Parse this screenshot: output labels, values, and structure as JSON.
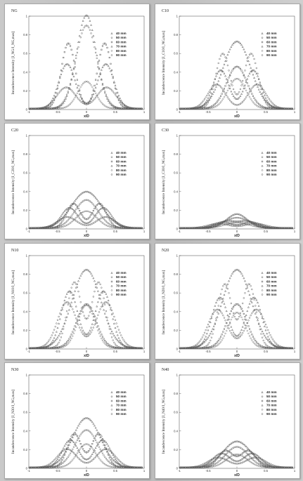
{
  "chart_data": [
    {
      "type": "line",
      "title": "NG",
      "xlabel": "x/D",
      "ylabel": "Incandescence Intensity [I_NG/I_NG,max]",
      "xlim": [
        -1,
        1
      ],
      "ylim": [
        0,
        1
      ],
      "legend_position": "top-right",
      "series": [
        {
          "name": "40 mm",
          "center": 0.0,
          "width": 0.17,
          "peak": 1.0,
          "bimodal": 0
        },
        {
          "name": "50 mm",
          "center": 0.0,
          "width": 0.18,
          "peak": 0.89,
          "bimodal": 0
        },
        {
          "name": "60 mm",
          "center": 0.0,
          "width": 0.22,
          "peak": 0.7,
          "bimodal": 0.45
        },
        {
          "name": "70 mm",
          "center": 0.0,
          "width": 0.26,
          "peak": 0.48,
          "bimodal": 0.48
        },
        {
          "name": "80 mm",
          "center": 0.0,
          "width": 0.15,
          "peak": 0.29,
          "bimodal": 0
        },
        {
          "name": "90 mm",
          "center": 0.0,
          "width": 0.3,
          "peak": 0.23,
          "bimodal": 0.5
        }
      ]
    },
    {
      "type": "line",
      "title": "C10",
      "xlabel": "x/D",
      "ylabel": "Incandescence Intensity [I_C10/I_NG,max]",
      "xlim": [
        -1,
        1
      ],
      "ylim": [
        0,
        1
      ],
      "legend_position": "top-right",
      "series": [
        {
          "name": "40 mm",
          "center": 0.0,
          "width": 0.24,
          "peak": 0.72,
          "bimodal": 0
        },
        {
          "name": "50 mm",
          "center": 0.0,
          "width": 0.22,
          "peak": 0.6,
          "bimodal": 0.35
        },
        {
          "name": "60 mm",
          "center": 0.0,
          "width": 0.18,
          "peak": 0.45,
          "bimodal": 0
        },
        {
          "name": "70 mm",
          "center": 0.0,
          "width": 0.25,
          "peak": 0.42,
          "bimodal": 0.4
        },
        {
          "name": "80 mm",
          "center": 0.0,
          "width": 0.16,
          "peak": 0.32,
          "bimodal": 0
        },
        {
          "name": "90 mm",
          "center": 0.0,
          "width": 0.28,
          "peak": 0.26,
          "bimodal": 0.5
        }
      ]
    },
    {
      "type": "line",
      "title": "C20",
      "xlabel": "x/D",
      "ylabel": "Incandescence Intensity [I_C20/I_NG,max]",
      "xlim": [
        -1,
        1
      ],
      "ylim": [
        0,
        1
      ],
      "legend_position": "top-right",
      "series": [
        {
          "name": "40 mm",
          "center": 0.0,
          "width": 0.26,
          "peak": 0.39,
          "bimodal": 0
        },
        {
          "name": "50 mm",
          "center": 0.0,
          "width": 0.2,
          "peak": 0.3,
          "bimodal": 0
        },
        {
          "name": "60 mm",
          "center": 0.0,
          "width": 0.22,
          "peak": 0.27,
          "bimodal": 0.32
        },
        {
          "name": "70 mm",
          "center": 0.0,
          "width": 0.26,
          "peak": 0.22,
          "bimodal": 0.42
        },
        {
          "name": "80 mm",
          "center": 0.0,
          "width": 0.18,
          "peak": 0.18,
          "bimodal": 0
        },
        {
          "name": "90 mm",
          "center": 0.0,
          "width": 0.3,
          "peak": 0.12,
          "bimodal": 0.48
        }
      ]
    },
    {
      "type": "line",
      "title": "C30",
      "xlabel": "x/D",
      "ylabel": "Incandescence Intensity [I_C30/I_NG,max]",
      "xlim": [
        -1,
        1
      ],
      "ylim": [
        0,
        1
      ],
      "legend_position": "top-right",
      "series": [
        {
          "name": "40 mm",
          "center": 0.0,
          "width": 0.18,
          "peak": 0.15,
          "bimodal": 0
        },
        {
          "name": "50 mm",
          "center": 0.0,
          "width": 0.22,
          "peak": 0.11,
          "bimodal": 0
        },
        {
          "name": "60 mm",
          "center": 0.0,
          "width": 0.26,
          "peak": 0.09,
          "bimodal": 0.25
        },
        {
          "name": "70 mm",
          "center": 0.0,
          "width": 0.28,
          "peak": 0.07,
          "bimodal": 0.35
        },
        {
          "name": "80 mm",
          "center": 0.0,
          "width": 0.2,
          "peak": 0.06,
          "bimodal": 0
        },
        {
          "name": "90 mm",
          "center": 0.0,
          "width": 0.32,
          "peak": 0.05,
          "bimodal": 0.45
        }
      ]
    },
    {
      "type": "line",
      "title": "N10",
      "xlabel": "x/D",
      "ylabel": "Incandescence Intensity [I_N10/I_NG,max]",
      "xlim": [
        -1,
        1
      ],
      "ylim": [
        0,
        1
      ],
      "legend_position": "top-right",
      "series": [
        {
          "name": "40 mm",
          "center": 0.0,
          "width": 0.25,
          "peak": 0.84,
          "bimodal": 0
        },
        {
          "name": "50 mm",
          "center": 0.0,
          "width": 0.22,
          "peak": 0.74,
          "bimodal": 0.3
        },
        {
          "name": "60 mm",
          "center": 0.0,
          "width": 0.17,
          "peak": 0.47,
          "bimodal": 0
        },
        {
          "name": "70 mm",
          "center": 0.0,
          "width": 0.26,
          "peak": 0.62,
          "bimodal": 0.42
        },
        {
          "name": "80 mm",
          "center": 0.0,
          "width": 0.15,
          "peak": 0.46,
          "bimodal": 0
        },
        {
          "name": "90 mm",
          "center": 0.0,
          "width": 0.3,
          "peak": 0.5,
          "bimodal": 0.48
        }
      ]
    },
    {
      "type": "line",
      "title": "N20",
      "xlabel": "x/D",
      "ylabel": "Incandescence Intensity [I_N20/I_NG,max]",
      "xlim": [
        -1,
        1
      ],
      "ylim": [
        0,
        1
      ],
      "legend_position": "top-right",
      "series": [
        {
          "name": "40 mm",
          "center": 0.0,
          "width": 0.25,
          "peak": 0.84,
          "bimodal": 0
        },
        {
          "name": "50 mm",
          "center": 0.0,
          "width": 0.22,
          "peak": 0.72,
          "bimodal": 0.3
        },
        {
          "name": "60 mm",
          "center": 0.0,
          "width": 0.17,
          "peak": 0.47,
          "bimodal": 0
        },
        {
          "name": "70 mm",
          "center": 0.0,
          "width": 0.26,
          "peak": 0.55,
          "bimodal": 0.42
        },
        {
          "name": "80 mm",
          "center": 0.0,
          "width": 0.15,
          "peak": 0.38,
          "bimodal": 0
        },
        {
          "name": "90 mm",
          "center": 0.0,
          "width": 0.3,
          "peak": 0.42,
          "bimodal": 0.48
        }
      ]
    },
    {
      "type": "line",
      "title": "N30",
      "xlabel": "x/D",
      "ylabel": "Incandescence Intensity [I_N30/I_NG,max]",
      "xlim": [
        -1,
        1
      ],
      "ylim": [
        0,
        1
      ],
      "legend_position": "top-right",
      "series": [
        {
          "name": "40 mm",
          "center": 0.0,
          "width": 0.24,
          "peak": 0.53,
          "bimodal": 0
        },
        {
          "name": "50 mm",
          "center": 0.0,
          "width": 0.2,
          "peak": 0.4,
          "bimodal": 0
        },
        {
          "name": "60 mm",
          "center": 0.0,
          "width": 0.22,
          "peak": 0.38,
          "bimodal": 0.3
        },
        {
          "name": "70 mm",
          "center": 0.0,
          "width": 0.26,
          "peak": 0.3,
          "bimodal": 0.4
        },
        {
          "name": "80 mm",
          "center": 0.0,
          "width": 0.16,
          "peak": 0.25,
          "bimodal": 0
        },
        {
          "name": "90 mm",
          "center": 0.0,
          "width": 0.3,
          "peak": 0.2,
          "bimodal": 0.48
        }
      ]
    },
    {
      "type": "line",
      "title": "N40",
      "xlabel": "x/D",
      "ylabel": "Incandescence Intensity [I_N40/I_NG,max]",
      "xlim": [
        -1,
        1
      ],
      "ylim": [
        0,
        1
      ],
      "legend_position": "top-right",
      "series": [
        {
          "name": "40 mm",
          "center": 0.0,
          "width": 0.24,
          "peak": 0.28,
          "bimodal": 0
        },
        {
          "name": "50 mm",
          "center": 0.0,
          "width": 0.2,
          "peak": 0.22,
          "bimodal": 0
        },
        {
          "name": "60 mm",
          "center": 0.0,
          "width": 0.24,
          "peak": 0.2,
          "bimodal": 0.28
        },
        {
          "name": "70 mm",
          "center": 0.0,
          "width": 0.28,
          "peak": 0.16,
          "bimodal": 0.38
        },
        {
          "name": "80 mm",
          "center": 0.0,
          "width": 0.18,
          "peak": 0.14,
          "bimodal": 0
        },
        {
          "name": "90 mm",
          "center": 0.0,
          "width": 0.32,
          "peak": 0.11,
          "bimodal": 0.46
        }
      ]
    }
  ],
  "y_ticks": [
    "0",
    "0.2",
    "0.4",
    "0.6",
    "0.8",
    "1"
  ],
  "x_ticks": [
    "-1",
    "-0.5",
    "0",
    "0.5",
    "1"
  ]
}
